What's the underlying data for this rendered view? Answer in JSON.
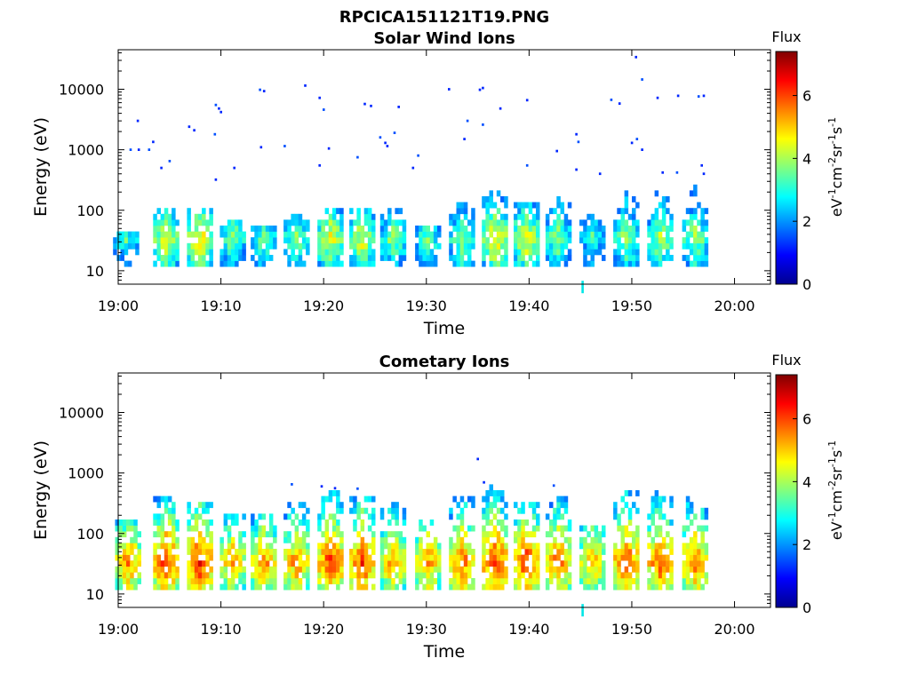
{
  "figure_title": "RPCICA151121T19.PNG",
  "chart_data": [
    {
      "type": "heatmap",
      "title": "Solar Wind Ions",
      "xlabel": "Time",
      "ylabel": "Energy (eV)",
      "x_ticks": [
        "19:00",
        "19:10",
        "19:20",
        "19:30",
        "19:40",
        "19:50",
        "20:00"
      ],
      "xlim_minutes": [
        0,
        63.5
      ],
      "y_scale": "log",
      "ylim": [
        6,
        45000
      ],
      "y_ticks": [
        10,
        100,
        1000,
        10000
      ],
      "y_tick_labels": [
        "10",
        "100",
        "1000",
        "10000"
      ],
      "colorbar": {
        "title": "Flux",
        "label": "eV-1cm-2sr-1s-1",
        "min": 0,
        "max": 7.4,
        "ticks": [
          0,
          2,
          4,
          6
        ],
        "colormap": "jet"
      },
      "bursts": [
        {
          "t": 0.6,
          "flux": 3.4,
          "top": 45
        },
        {
          "t": 4.5,
          "flux": 4.6,
          "top": 120
        },
        {
          "t": 7.8,
          "flux": 4.8,
          "top": 100
        },
        {
          "t": 11.0,
          "flux": 3.9,
          "top": 70
        },
        {
          "t": 14.0,
          "flux": 3.7,
          "top": 60
        },
        {
          "t": 17.2,
          "flux": 3.9,
          "top": 80
        },
        {
          "t": 20.5,
          "flux": 4.6,
          "top": 110
        },
        {
          "t": 23.6,
          "flux": 4.6,
          "top": 110
        },
        {
          "t": 26.6,
          "flux": 4.0,
          "top": 100
        },
        {
          "t": 30.0,
          "flux": 3.6,
          "top": 60
        },
        {
          "t": 33.3,
          "flux": 4.0,
          "top": 150
        },
        {
          "t": 36.5,
          "flux": 4.9,
          "top": 200
        },
        {
          "t": 39.6,
          "flux": 4.7,
          "top": 150
        },
        {
          "t": 42.7,
          "flux": 4.0,
          "top": 160
        },
        {
          "t": 46.0,
          "flux": 3.4,
          "top": 90
        },
        {
          "t": 49.3,
          "flux": 4.1,
          "top": 220
        },
        {
          "t": 52.6,
          "flux": 4.2,
          "top": 230
        },
        {
          "t": 56.0,
          "flux": 4.1,
          "top": 250
        }
      ],
      "sparse_points": [
        {
          "t": 1.2,
          "e": 1000
        },
        {
          "t": 1.9,
          "e": 3000
        },
        {
          "t": 2.0,
          "e": 1000
        },
        {
          "t": 3.0,
          "e": 1000
        },
        {
          "t": 3.4,
          "e": 1350
        },
        {
          "t": 4.2,
          "e": 500
        },
        {
          "t": 5.0,
          "e": 650
        },
        {
          "t": 6.9,
          "e": 2400
        },
        {
          "t": 7.4,
          "e": 2100
        },
        {
          "t": 9.5,
          "e": 5500
        },
        {
          "t": 9.8,
          "e": 4800
        },
        {
          "t": 10.0,
          "e": 4200
        },
        {
          "t": 9.4,
          "e": 1800
        },
        {
          "t": 9.5,
          "e": 320
        },
        {
          "t": 11.3,
          "e": 500
        },
        {
          "t": 13.8,
          "e": 9800
        },
        {
          "t": 14.2,
          "e": 9300
        },
        {
          "t": 13.9,
          "e": 1100
        },
        {
          "t": 16.2,
          "e": 1150
        },
        {
          "t": 18.2,
          "e": 11500
        },
        {
          "t": 19.6,
          "e": 7200
        },
        {
          "t": 20.0,
          "e": 4600
        },
        {
          "t": 20.5,
          "e": 1050
        },
        {
          "t": 19.6,
          "e": 550
        },
        {
          "t": 23.3,
          "e": 750
        },
        {
          "t": 24.0,
          "e": 5700
        },
        {
          "t": 24.6,
          "e": 5300
        },
        {
          "t": 25.5,
          "e": 1600
        },
        {
          "t": 26.0,
          "e": 1300
        },
        {
          "t": 26.2,
          "e": 1150
        },
        {
          "t": 26.9,
          "e": 1900
        },
        {
          "t": 27.3,
          "e": 5100
        },
        {
          "t": 28.7,
          "e": 500
        },
        {
          "t": 29.2,
          "e": 800
        },
        {
          "t": 32.2,
          "e": 10000
        },
        {
          "t": 33.7,
          "e": 1500
        },
        {
          "t": 34.0,
          "e": 3000
        },
        {
          "t": 35.2,
          "e": 9800
        },
        {
          "t": 35.5,
          "e": 10500
        },
        {
          "t": 35.5,
          "e": 2600
        },
        {
          "t": 37.2,
          "e": 4800
        },
        {
          "t": 39.8,
          "e": 6600
        },
        {
          "t": 39.8,
          "e": 550
        },
        {
          "t": 42.7,
          "e": 950
        },
        {
          "t": 44.6,
          "e": 1800
        },
        {
          "t": 44.8,
          "e": 1350
        },
        {
          "t": 44.6,
          "e": 470
        },
        {
          "t": 46.9,
          "e": 400
        },
        {
          "t": 48.0,
          "e": 6700
        },
        {
          "t": 48.8,
          "e": 5800
        },
        {
          "t": 50.0,
          "e": 1300
        },
        {
          "t": 50.5,
          "e": 1500
        },
        {
          "t": 51.0,
          "e": 1000
        },
        {
          "t": 50.4,
          "e": 34000
        },
        {
          "t": 51.0,
          "e": 14500
        },
        {
          "t": 52.5,
          "e": 7200
        },
        {
          "t": 54.5,
          "e": 7800
        },
        {
          "t": 56.5,
          "e": 7600
        },
        {
          "t": 57.0,
          "e": 7800
        },
        {
          "t": 53.0,
          "e": 420
        },
        {
          "t": 54.4,
          "e": 420
        },
        {
          "t": 56.8,
          "e": 550
        },
        {
          "t": 57.0,
          "e": 400
        },
        {
          "t": 45.2,
          "e": 6.5
        }
      ]
    },
    {
      "type": "heatmap",
      "title": "Cometary Ions",
      "xlabel": "Time",
      "ylabel": "Energy (eV)",
      "x_ticks": [
        "19:00",
        "19:10",
        "19:20",
        "19:30",
        "19:40",
        "19:50",
        "20:00"
      ],
      "xlim_minutes": [
        0,
        63.5
      ],
      "y_scale": "log",
      "ylim": [
        6,
        45000
      ],
      "y_ticks": [
        10,
        100,
        1000,
        10000
      ],
      "y_tick_labels": [
        "10",
        "100",
        "1000",
        "10000"
      ],
      "colorbar": {
        "title": "Flux",
        "label": "eV-1cm-2sr-1s-1",
        "min": 0,
        "max": 7.4,
        "ticks": [
          0,
          2,
          4,
          6
        ],
        "colormap": "jet"
      },
      "bursts": [
        {
          "t": 0.8,
          "flux": 5.6,
          "top": 180
        },
        {
          "t": 4.5,
          "flux": 6.2,
          "top": 400
        },
        {
          "t": 7.8,
          "flux": 6.3,
          "top": 320
        },
        {
          "t": 11.0,
          "flux": 5.4,
          "top": 200
        },
        {
          "t": 14.0,
          "flux": 5.6,
          "top": 220
        },
        {
          "t": 17.2,
          "flux": 5.6,
          "top": 300
        },
        {
          "t": 20.5,
          "flux": 6.2,
          "top": 500
        },
        {
          "t": 23.6,
          "flux": 6.2,
          "top": 450
        },
        {
          "t": 26.6,
          "flux": 5.5,
          "top": 350
        },
        {
          "t": 30.0,
          "flux": 5.5,
          "top": 160
        },
        {
          "t": 33.3,
          "flux": 5.8,
          "top": 450
        },
        {
          "t": 36.5,
          "flux": 6.3,
          "top": 650
        },
        {
          "t": 39.6,
          "flux": 6.2,
          "top": 300
        },
        {
          "t": 42.7,
          "flux": 5.8,
          "top": 500
        },
        {
          "t": 46.0,
          "flux": 5.3,
          "top": 150
        },
        {
          "t": 49.3,
          "flux": 6.1,
          "top": 500
        },
        {
          "t": 52.6,
          "flux": 6.0,
          "top": 480
        },
        {
          "t": 56.0,
          "flux": 5.9,
          "top": 420
        }
      ],
      "sparse_points": [
        {
          "t": 16.9,
          "e": 650
        },
        {
          "t": 19.8,
          "e": 600
        },
        {
          "t": 21.1,
          "e": 560
        },
        {
          "t": 23.3,
          "e": 550
        },
        {
          "t": 35.0,
          "e": 1700
        },
        {
          "t": 35.6,
          "e": 700
        },
        {
          "t": 42.4,
          "e": 620
        },
        {
          "t": 45.2,
          "e": 6.5
        }
      ]
    }
  ]
}
